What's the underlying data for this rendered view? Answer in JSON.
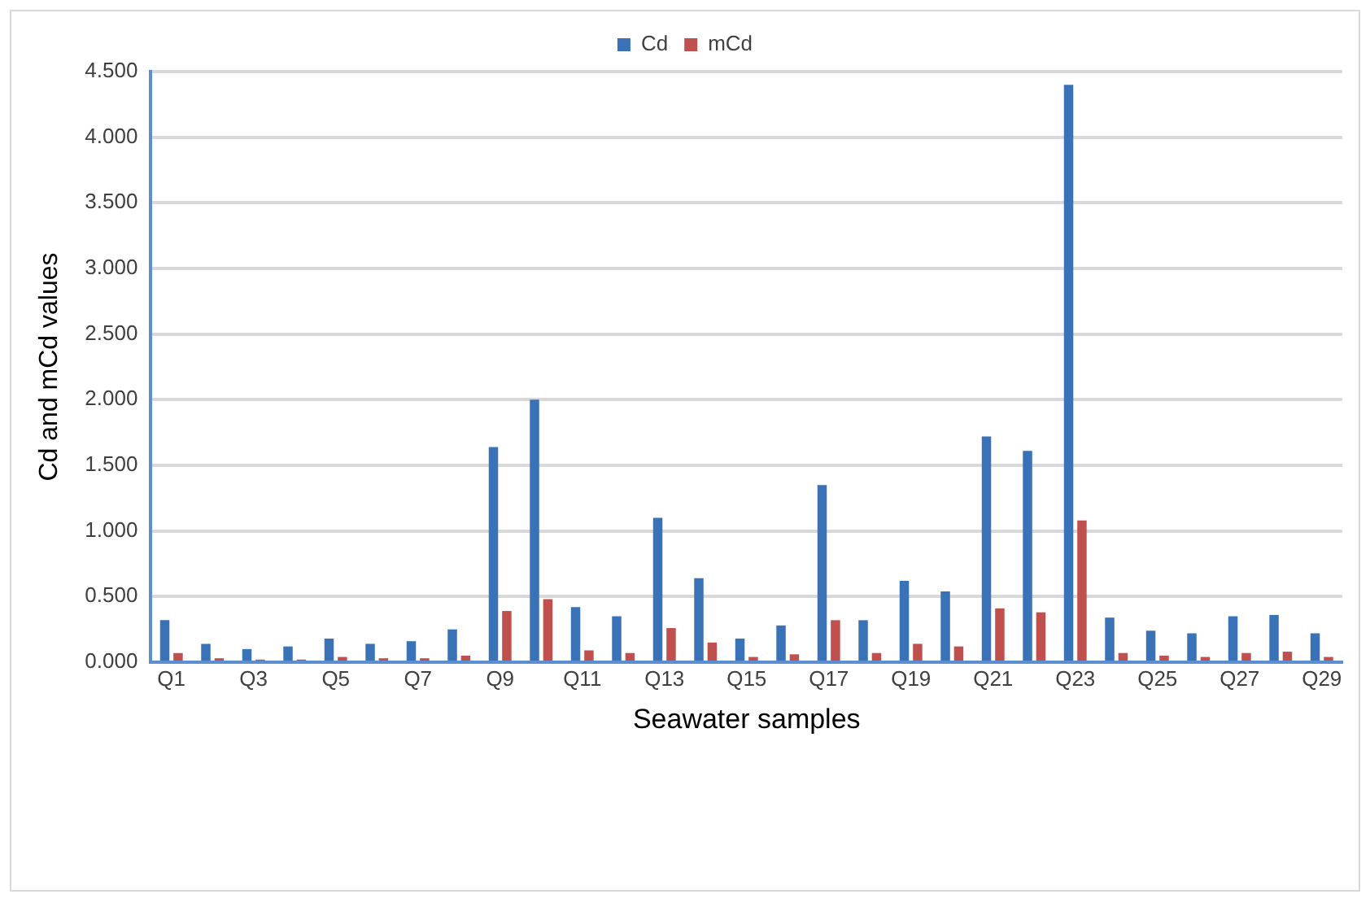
{
  "chart_data": {
    "type": "bar",
    "xlabel": "Seawater samples",
    "ylabel": "Cd and mCd values",
    "categories": [
      "Q1",
      null,
      "Q3",
      null,
      "Q5",
      null,
      "Q7",
      null,
      "Q9",
      null,
      "Q11",
      null,
      "Q13",
      null,
      "Q15",
      null,
      "Q17",
      null,
      "Q19",
      null,
      "Q21",
      null,
      "Q23",
      null,
      "Q25",
      null,
      "Q27",
      null,
      "Q29"
    ],
    "series": [
      {
        "name": "Cd",
        "color": "#3a72b8",
        "values": [
          0.32,
          0.14,
          0.1,
          0.12,
          0.18,
          0.14,
          0.16,
          0.25,
          1.64,
          2.0,
          0.42,
          0.35,
          1.1,
          0.64,
          0.18,
          0.28,
          1.35,
          0.32,
          0.62,
          0.54,
          1.72,
          1.61,
          4.4,
          0.34,
          0.24,
          0.22,
          0.35,
          0.36,
          0.22
        ]
      },
      {
        "name": "mCd",
        "color": "#c0504d",
        "values": [
          0.07,
          0.03,
          0.02,
          0.02,
          0.04,
          0.03,
          0.03,
          0.05,
          0.39,
          0.48,
          0.09,
          0.07,
          0.26,
          0.15,
          0.04,
          0.06,
          0.32,
          0.07,
          0.14,
          0.12,
          0.41,
          0.38,
          1.08,
          0.07,
          0.05,
          0.04,
          0.07,
          0.08,
          0.04
        ]
      }
    ],
    "ylim": [
      0,
      4.5
    ],
    "yticks": [
      {
        "value": 0,
        "label": "0.000"
      },
      {
        "value": 0.5,
        "label": "0.500"
      },
      {
        "value": 1,
        "label": "1.000"
      },
      {
        "value": 1.5,
        "label": "1.500"
      },
      {
        "value": 2,
        "label": "2.000"
      },
      {
        "value": 2.5,
        "label": "2.500"
      },
      {
        "value": 3,
        "label": "3.000"
      },
      {
        "value": 3.5,
        "label": "3.500"
      },
      {
        "value": 4,
        "label": "4.000"
      },
      {
        "value": 4.5,
        "label": "4.500"
      }
    ],
    "grid": "y",
    "legend": "top"
  }
}
